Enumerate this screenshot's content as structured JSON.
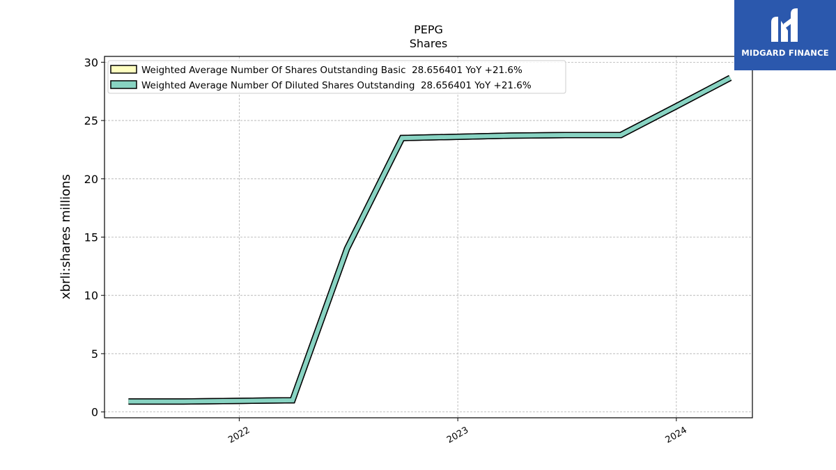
{
  "chart_data": {
    "type": "line",
    "title": "PEPG",
    "subtitle": "Shares",
    "ylabel": "xbrli:shares millions",
    "ylim": [
      -0.5,
      30.5
    ],
    "yticks": [
      0,
      5,
      10,
      15,
      20,
      25,
      30
    ],
    "xlim": [
      "2021-05-21",
      "2024-05-07"
    ],
    "xticks": [
      "2022-01-01",
      "2023-01-01",
      "2024-01-01"
    ],
    "xtick_labels": [
      "2022",
      "2023",
      "2024"
    ],
    "grid": true,
    "legend_position": "top-left",
    "series": [
      {
        "name": "Weighted Average Number Of Shares Outstanding Basic",
        "legend_label": "Weighted Average Number Of Shares Outstanding Basic  28.656401 YoY +21.6%",
        "color": "#ffffc0",
        "x": [
          "2021-06-30",
          "2021-09-30",
          "2021-12-31",
          "2022-03-31",
          "2022-06-30",
          "2022-09-30",
          "2022-12-31",
          "2023-03-31",
          "2023-06-30",
          "2023-09-30",
          "2023-12-31",
          "2024-03-31"
        ],
        "values": [
          0.9,
          0.9,
          0.95,
          1.0,
          14.0,
          23.5,
          23.6,
          23.7,
          23.75,
          23.75,
          26.2,
          28.656401
        ]
      },
      {
        "name": "Weighted Average Number Of Diluted Shares Outstanding",
        "legend_label": "Weighted Average Number Of Diluted Shares Outstanding  28.656401 YoY +21.6%",
        "color": "#88d3c2",
        "x": [
          "2021-06-30",
          "2021-09-30",
          "2021-12-31",
          "2022-03-31",
          "2022-06-30",
          "2022-09-30",
          "2022-12-31",
          "2023-03-31",
          "2023-06-30",
          "2023-09-30",
          "2023-12-31",
          "2024-03-31"
        ],
        "values": [
          0.9,
          0.9,
          0.95,
          1.0,
          14.0,
          23.5,
          23.6,
          23.7,
          23.75,
          23.75,
          26.2,
          28.656401
        ]
      }
    ]
  },
  "logo": {
    "text": "MIDGARD FINANCE",
    "color": "#2b58ad"
  }
}
